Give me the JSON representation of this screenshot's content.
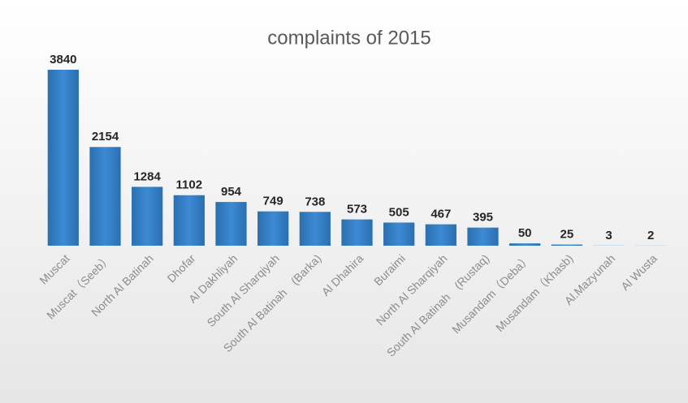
{
  "chart_data": {
    "type": "bar",
    "title": "complaints of 2015",
    "categories": [
      "Muscat",
      "Muscat（Seeb）",
      "North Al Batinah",
      "Dhofar",
      "Al Dakhliyah",
      "South Al Sharqiyah",
      "South Al Batinah　(Barka)",
      "Al Dhahira",
      "Buraimi",
      "North Al Sharqiyah",
      "South Al Batinah　(Rustaq)",
      "Musandam（Deba）",
      "Musandam（Khasb)",
      "Al.Mazyunah",
      "Al Wusta"
    ],
    "values": [
      3840,
      2154,
      1284,
      1102,
      954,
      749,
      738,
      573,
      505,
      467,
      395,
      50,
      25,
      3,
      2
    ],
    "color": "#2e75b6"
  }
}
